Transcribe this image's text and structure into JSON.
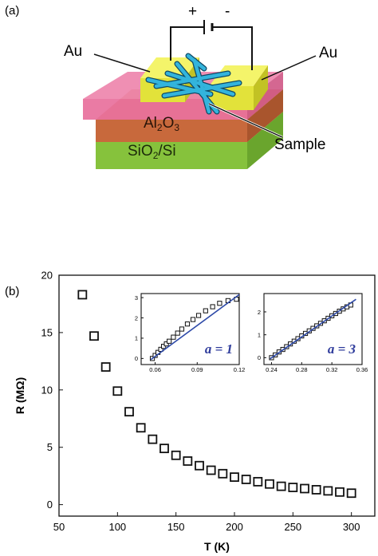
{
  "panel_a": {
    "label": "(a)",
    "plus": "+",
    "minus": "-",
    "electrode_left": "Au",
    "electrode_right": "Au",
    "layer_oxide": "Al2O3",
    "layer_oxide_base": "Al",
    "layer_oxide_sub1": "2",
    "layer_oxide_mid": "O",
    "layer_oxide_sub2": "3",
    "layer_substrate": "SiO2/Si",
    "layer_substrate_base": "SiO",
    "layer_substrate_sub": "2",
    "layer_substrate_tail": "/Si",
    "sample_label": "Sample",
    "colors": {
      "gold": "#e8e83a",
      "pink": "#e8709c",
      "oxide": "#c8693c",
      "substrate": "#8cc540",
      "fiber": "#33b4dc"
    }
  },
  "panel_b": {
    "label": "(b)",
    "chart_data": [
      {
        "type": "scatter",
        "title": "",
        "xlabel": "T (K)",
        "ylabel": "R (MΩ)",
        "xlim": [
          50,
          320
        ],
        "ylim": [
          -1,
          20
        ],
        "xticks": [
          "50",
          "100",
          "150",
          "200",
          "250",
          "300"
        ],
        "yticks": [
          "0",
          "5",
          "10",
          "15",
          "20"
        ],
        "marker": "open-square",
        "series": [
          {
            "x": [
              70,
              80,
              90,
              100,
              110,
              120,
              130,
              140,
              150,
              160,
              170,
              180,
              190,
              200,
              210,
              220,
              230,
              240,
              250,
              260,
              270,
              280,
              290,
              300
            ],
            "y": [
              18.3,
              14.7,
              12.0,
              9.9,
              8.1,
              6.7,
              5.7,
              4.9,
              4.3,
              3.8,
              3.4,
              3.0,
              2.7,
              2.4,
              2.2,
              2.0,
              1.8,
              1.6,
              1.5,
              1.4,
              1.3,
              1.2,
              1.1,
              1.0
            ]
          }
        ]
      },
      {
        "type": "scatter",
        "annotation": "a = 1",
        "xlim": [
          0.05,
          0.12
        ],
        "ylim": [
          -0.3,
          3.2
        ],
        "xticks": [
          "0.06",
          "0.09",
          "0.12"
        ],
        "yticks": [
          "0",
          "1",
          "2",
          "3"
        ],
        "marker": "open-square",
        "fit_color": "#2e4aa8",
        "series": [
          {
            "x": [
              0.058,
              0.06,
              0.062,
              0.064,
              0.066,
              0.068,
              0.07,
              0.073,
              0.076,
              0.079,
              0.083,
              0.087,
              0.091,
              0.096,
              0.101,
              0.106,
              0.112,
              0.118
            ],
            "y": [
              0.0,
              0.15,
              0.3,
              0.45,
              0.6,
              0.72,
              0.85,
              1.05,
              1.25,
              1.45,
              1.7,
              1.92,
              2.12,
              2.35,
              2.55,
              2.72,
              2.85,
              2.92
            ]
          },
          {
            "name": "fit",
            "x": [
              0.057,
              0.12
            ],
            "y": [
              -0.05,
              3.15
            ]
          }
        ]
      },
      {
        "type": "scatter",
        "annotation": "a = 3",
        "xlim": [
          0.23,
          0.36
        ],
        "ylim": [
          -0.3,
          2.8
        ],
        "xticks": [
          "0.24",
          "0.28",
          "0.32",
          "0.36"
        ],
        "yticks": [
          "0",
          "1",
          "2"
        ],
        "marker": "open-square",
        "fit_color": "#2e4aa8",
        "series": [
          {
            "x": [
              0.24,
              0.245,
              0.25,
              0.255,
              0.26,
              0.265,
              0.27,
              0.275,
              0.28,
              0.285,
              0.29,
              0.295,
              0.3,
              0.305,
              0.31,
              0.315,
              0.32,
              0.325,
              0.33,
              0.335,
              0.34,
              0.345
            ],
            "y": [
              0.0,
              0.12,
              0.25,
              0.36,
              0.48,
              0.6,
              0.72,
              0.83,
              0.95,
              1.06,
              1.17,
              1.28,
              1.39,
              1.5,
              1.61,
              1.72,
              1.83,
              1.93,
              2.03,
              2.13,
              2.22,
              2.3
            ]
          },
          {
            "name": "fit",
            "x": [
              0.238,
              0.352
            ],
            "y": [
              -0.05,
              2.55
            ]
          }
        ]
      }
    ]
  }
}
